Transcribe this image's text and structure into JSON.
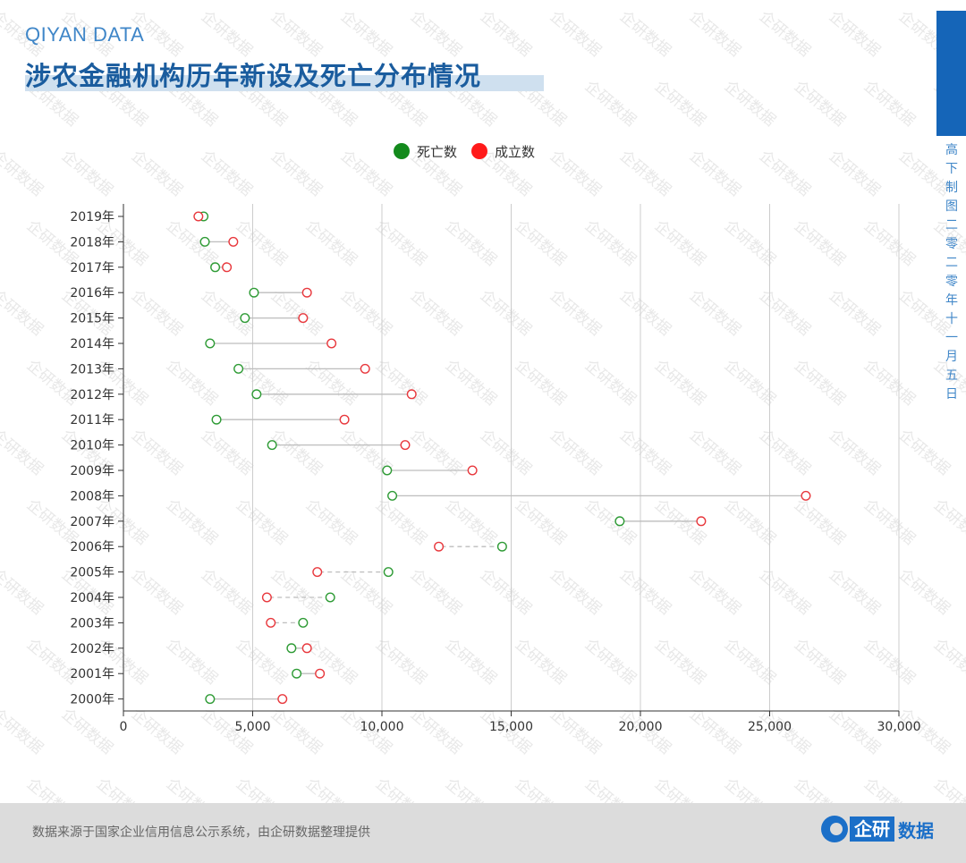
{
  "header": {
    "brand": "QIYAN DATA",
    "title": "涉农金融机构历年新设及死亡分布情况"
  },
  "side_note": "高下制图 二零二零年十一月五日",
  "footer": {
    "source": "数据来源于国家企业信用信息公示系统，由企研数据整理提供",
    "logo_box": "企研",
    "logo_text": "数据"
  },
  "watermark": "企研数据",
  "colors": {
    "death": "#2e9b35",
    "birth": "#e8383d",
    "legend_death": "#138a1c",
    "legend_birth": "#ff1a1a",
    "connector": "#bdbdbd",
    "grid": "#cccccc",
    "axis": "#333333"
  },
  "chart_data": {
    "type": "dumbbell",
    "legend": [
      {
        "name": "死亡数",
        "key": "death",
        "color": "#138a1c"
      },
      {
        "name": "成立数",
        "key": "birth",
        "color": "#ff1a1a"
      }
    ],
    "legend_position": "top-center",
    "xlim": [
      0,
      30000
    ],
    "x_ticks": [
      0,
      5000,
      10000,
      15000,
      20000,
      25000,
      30000
    ],
    "x_tick_labels": [
      "0",
      "5,000",
      "10,000",
      "15,000",
      "20,000",
      "25,000",
      "30,000"
    ],
    "vertical_grid": true,
    "categories": [
      "2019年",
      "2018年",
      "2017年",
      "2016年",
      "2015年",
      "2014年",
      "2013年",
      "2012年",
      "2011年",
      "2010年",
      "2009年",
      "2008年",
      "2007年",
      "2006年",
      "2005年",
      "2004年",
      "2003年",
      "2002年",
      "2001年",
      "2000年"
    ],
    "series": [
      {
        "name": "死亡数",
        "values": [
          3100,
          3150,
          3550,
          5050,
          4700,
          3350,
          4450,
          5150,
          3600,
          5750,
          10200,
          10400,
          19200,
          14650,
          10250,
          8000,
          6950,
          6500,
          6700,
          3350
        ]
      },
      {
        "name": "成立数",
        "values": [
          2900,
          4250,
          4000,
          7100,
          6950,
          8050,
          9350,
          11150,
          8550,
          10900,
          13500,
          26400,
          22350,
          12200,
          7500,
          5550,
          5700,
          7100,
          7600,
          6150
        ]
      }
    ]
  }
}
